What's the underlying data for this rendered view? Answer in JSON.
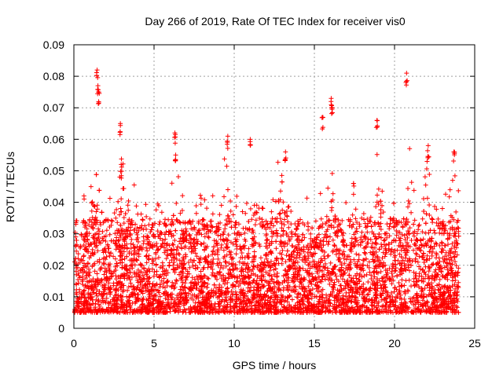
{
  "chart_data": {
    "type": "scatter",
    "title": "Day 266 of 2019, Rate Of TEC Index for receiver vis0",
    "xlabel": "GPS time / hours",
    "ylabel": "ROTI / TECUs",
    "xlim": [
      0,
      25
    ],
    "ylim": [
      0,
      0.09
    ],
    "grid": true,
    "marker": "+",
    "color": "#ff0000",
    "xticks": [
      0,
      5,
      10,
      15,
      20,
      25
    ],
    "xtick_labels": [
      "0",
      "5",
      "10",
      "15",
      "20",
      "25"
    ],
    "yticks": [
      0,
      0.01,
      0.02,
      0.03,
      0.04,
      0.05,
      0.06,
      0.07,
      0.08,
      0.09
    ],
    "ytick_labels": [
      "0",
      "0.01",
      "0.02",
      "0.03",
      "0.04",
      "0.05",
      "0.06",
      "0.07",
      "0.08",
      "0.09"
    ],
    "series": [
      {
        "name": "ROTI",
        "notable_points": [
          {
            "x": 1.45,
            "y": 0.082
          },
          {
            "x": 1.5,
            "y": 0.077
          },
          {
            "x": 1.55,
            "y": 0.075
          },
          {
            "x": 2.9,
            "y": 0.065
          },
          {
            "x": 2.95,
            "y": 0.052
          },
          {
            "x": 6.3,
            "y": 0.062
          },
          {
            "x": 6.35,
            "y": 0.055
          },
          {
            "x": 9.6,
            "y": 0.061
          },
          {
            "x": 11.0,
            "y": 0.06
          },
          {
            "x": 13.2,
            "y": 0.056
          },
          {
            "x": 15.5,
            "y": 0.067
          },
          {
            "x": 16.05,
            "y": 0.073
          },
          {
            "x": 16.1,
            "y": 0.07
          },
          {
            "x": 18.9,
            "y": 0.066
          },
          {
            "x": 20.75,
            "y": 0.081
          },
          {
            "x": 22.1,
            "y": 0.058
          },
          {
            "x": 23.7,
            "y": 0.056
          }
        ],
        "typical_range": [
          0.005,
          0.03
        ],
        "peak_hours": [
          1.5,
          3.0,
          6.5,
          9.5,
          13.0,
          16.0,
          19.0,
          21.0,
          22.0,
          23.8
        ]
      }
    ]
  }
}
